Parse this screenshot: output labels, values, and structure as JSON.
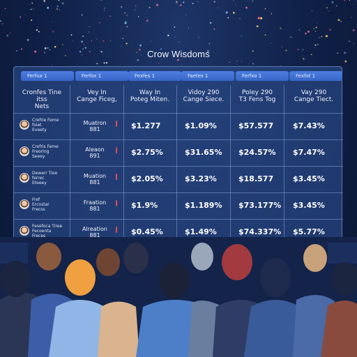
{
  "page": {
    "title": "Crow Wisdoms"
  },
  "tabs": [
    "Ferfux 1",
    "Ferfox 1",
    "Fexfes 1",
    "Faetes 1",
    "Ferfxo 1",
    "Fexfot 1"
  ],
  "columns": [
    "Cronfes Tine\nitss\nNets",
    "Vey In\nCange Ficeg,",
    "Way In\nPoteg Miten.",
    "Vidoy 290\nCange Siece.",
    "Poley 290\nT3 Fens Tog",
    "Vay 290\nCange Tiect."
  ],
  "rows": [
    {
      "name": "Crefrie Feme\nfoiet\nEveety",
      "status": "Muatron\n881",
      "values": [
        "$1.277",
        "$1.09%",
        "$57.577",
        "$7.43%"
      ]
    },
    {
      "name": "Crefris Feme\nFreoring\nSeeey",
      "status": "Aleaon\n891",
      "values": [
        "$2.75%",
        "$31.65%",
        "$24.57%",
        "$7.47%"
      ]
    },
    {
      "name": "Dewerr Tioe\nferrec\nEteeey",
      "status": "Muation\n881",
      "values": [
        "$2.05%",
        "$3.23%",
        "$18.577",
        "$3.45%"
      ]
    },
    {
      "name": "Fref\nErcostar\nFrecss",
      "status": "Fraation\n881",
      "values": [
        "$1.9%",
        "$1.189%",
        "$73.177%",
        "$3.45%"
      ]
    },
    {
      "name": "Fesefoca Tiree\nFecoenta\nFreces",
      "status": "Alreation\n881",
      "values": [
        "$0.45%",
        "$1.49%",
        "$74.337%",
        "$5.77%"
      ]
    }
  ],
  "colors": {
    "background": "#0f1f45",
    "board": "#284682",
    "tab": "#3d6fd4",
    "flag": "#e04a55"
  }
}
